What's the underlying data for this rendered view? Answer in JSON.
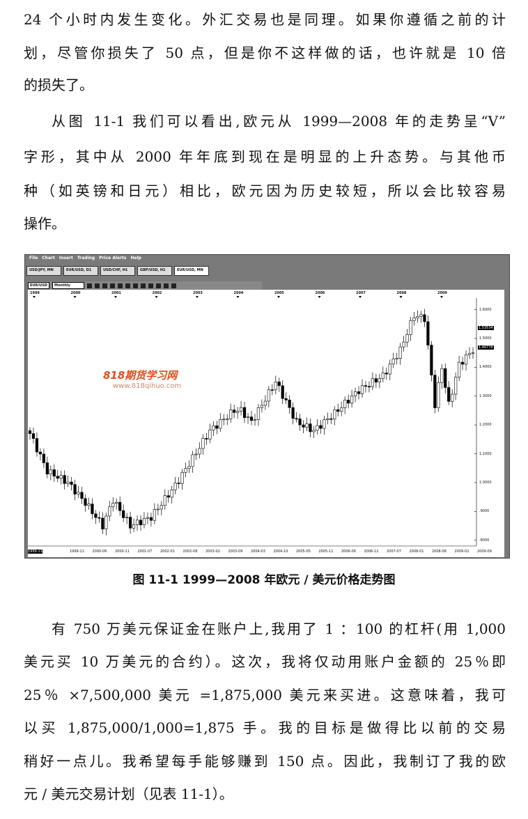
{
  "paragraph1": [
    "24 个小时内发生变化。外汇交易也是同理。如果你遵循之前的计",
    "划，尽管你损失了 50 点，但是你不这样做的话，也许就是 10 倍",
    "的损失了。"
  ],
  "paragraph2": [
    "从图 11-1 我们可以看出,欧元从 1999—2008 年的走势呈“V”",
    "字形，其中从 2000 年年底到现在是明显的上升态势。与其他币",
    "种（如英镑和日元）相比，欧元因为历史较短，所以会比较容易",
    "操作。"
  ],
  "figure": {
    "menu": [
      "File",
      "Chart",
      "Insert",
      "Trading",
      "Price Alerts",
      "Help"
    ],
    "tabs": [
      "USD/JPY, MN",
      "EUR/USD, D1",
      "USD/CHF, H1",
      "GBP/USD, H1",
      "EUR/USD, MN"
    ],
    "toolbar": {
      "symbol": "EUR/USD",
      "timeframe": "Monthly"
    },
    "watermark": {
      "text": "818期货学习网",
      "url": "www.818qihuo.com"
    },
    "caption": "图 11-1    1999—2008 年欧元 / 美元价格走势图"
  },
  "chart_data": {
    "type": "candlestick",
    "year_labels": [
      "1999",
      "2000",
      "2001",
      "2002",
      "2003",
      "2004",
      "2005",
      "2006",
      "2007",
      "2008",
      "2009"
    ],
    "x_tick_labels": [
      "1999-11",
      "1999-11",
      "2000-06",
      "2000-11",
      "2001-07",
      "2002-01",
      "2002-08",
      "2003-02",
      "2003-09",
      "2004-03",
      "2004-10",
      "2005-05",
      "2005-11",
      "2006-06",
      "2006-12",
      "2007-07",
      "2008-01",
      "2008-08",
      "2009-02",
      "2009-09"
    ],
    "y_tick_labels": [
      "1.6000",
      "1.5000",
      "1.4000",
      "1.3000",
      "1.2000",
      "1.1000",
      "1.0000",
      ".9000",
      ".8000"
    ],
    "ylim": [
      0.78,
      1.64
    ],
    "price_labels": [
      "1.53534",
      "1.46778"
    ],
    "closes": [
      [
        "1999-01",
        1.17
      ],
      [
        "1999-06",
        1.04
      ],
      [
        "1999-12",
        1.0
      ],
      [
        "2000-05",
        0.93
      ],
      [
        "2000-10",
        0.85
      ],
      [
        "2001-01",
        0.94
      ],
      [
        "2001-06",
        0.85
      ],
      [
        "2001-12",
        0.88
      ],
      [
        "2002-07",
        0.99
      ],
      [
        "2003-05",
        1.18
      ],
      [
        "2003-12",
        1.25
      ],
      [
        "2004-02",
        1.25
      ],
      [
        "2004-05",
        1.21
      ],
      [
        "2004-12",
        1.35
      ],
      [
        "2005-06",
        1.21
      ],
      [
        "2005-11",
        1.18
      ],
      [
        "2006-04",
        1.23
      ],
      [
        "2006-12",
        1.32
      ],
      [
        "2007-07",
        1.37
      ],
      [
        "2007-12",
        1.46
      ],
      [
        "2008-04",
        1.58
      ],
      [
        "2008-07",
        1.57
      ],
      [
        "2008-10",
        1.27
      ],
      [
        "2008-12",
        1.4
      ],
      [
        "2009-02",
        1.27
      ],
      [
        "2009-05",
        1.41
      ],
      [
        "2009-09",
        1.46
      ]
    ]
  },
  "paragraph3": [
    "有 750 万美元保证金在账户上,我用了 1 ：100 的杠杆(用 1,000",
    "美元买 10 万美元的合约）。这次，我将仅动用账户金额的 25％即",
    "25％ ×7,500,000 美元 =1,875,000 美元来买进。这意味着，我可",
    "以买 1,875,000/1,000=1,875 手。我的目标是做得比以前的交易",
    "稍好一点儿。我希望每手能够赚到 150 点。因此，我制订了我的欧",
    "元 / 美元交易计划（见表 11-1）。"
  ]
}
